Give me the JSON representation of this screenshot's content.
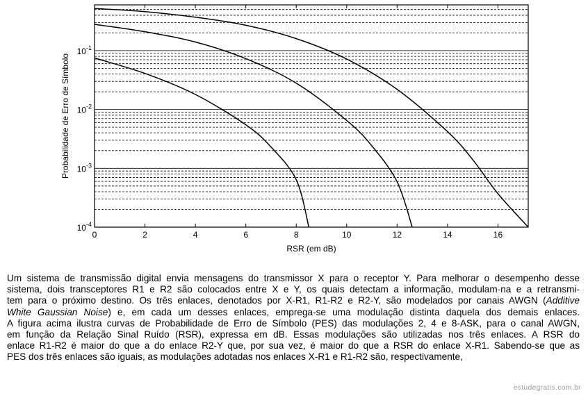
{
  "chart_data": {
    "type": "line",
    "xlabel": "RSR (em dB)",
    "ylabel": "Probabilidade de Erro de Símbolo",
    "y_scale": "log",
    "xlim": [
      0,
      17.2
    ],
    "ylim": [
      0.0001,
      0.6
    ],
    "x_ticks": [
      "0",
      "2",
      "4",
      "6",
      "8",
      "10",
      "12",
      "14",
      "16"
    ],
    "y_ticks": [
      {
        "base": "10",
        "exp": "-1",
        "value": 0.1
      },
      {
        "base": "10",
        "exp": "-2",
        "value": 0.01
      },
      {
        "base": "10",
        "exp": "-3",
        "value": 0.001
      },
      {
        "base": "10",
        "exp": "-4",
        "value": 0.0001
      }
    ],
    "grid": "horizontal",
    "series": [
      {
        "points": [
          [
            0,
            0.075
          ],
          [
            2,
            0.041
          ],
          [
            4,
            0.018
          ],
          [
            6,
            0.0055
          ],
          [
            7,
            0.0023
          ],
          [
            8,
            0.00064
          ],
          [
            8.5,
            0.0001
          ]
        ]
      },
      {
        "points": [
          [
            0,
            0.28
          ],
          [
            2,
            0.21
          ],
          [
            4,
            0.14
          ],
          [
            6,
            0.073
          ],
          [
            8,
            0.028
          ],
          [
            10,
            0.0065
          ],
          [
            11,
            0.0024
          ],
          [
            12,
            0.00059
          ],
          [
            12.6,
            0.0001
          ]
        ]
      },
      {
        "points": [
          [
            0,
            0.52
          ],
          [
            2,
            0.46
          ],
          [
            4,
            0.37
          ],
          [
            6,
            0.27
          ],
          [
            8,
            0.16
          ],
          [
            10,
            0.072
          ],
          [
            12,
            0.022
          ],
          [
            14,
            0.0042
          ],
          [
            15,
            0.0014
          ],
          [
            16,
            0.00037
          ],
          [
            17.2,
            0.0001
          ]
        ]
      }
    ]
  },
  "question": {
    "lines": [
      "Um sistema de transmissão digital envia mensagens do transmissor X para o receptor Y. Para melhorar o desempenho desse",
      "sistema, dois transceptores R1 e R2 são colocados entre X e Y, os quais detectam a informação, modulam-na e a retransmi-",
      "tem para o próximo destino. Os três enlaces, denotados por X-R1, R1-R2 e R2-Y, são modelados por canais AWGN (",
      "Additive",
      "White Gaussian Noise",
      ") e, em cada um desses enlaces, emprega-se uma modulação distinta daquela dos demais enlaces.",
      "A figura acima ilustra curvas de Probabilidade de Erro de Símbolo (PES) das modulações 2, 4 e 8-ASK, para o canal AWGN,",
      "em função da Relação Sinal Ruído (RSR), expressa em dB.  Essas modulações são utilizadas nos três enlaces. A RSR do",
      "enlace R1-R2 é maior do que a do enlace R2-Y que, por sua vez, é maior do que a RSR do enlace X-R1. Sabendo-se que as",
      "PES dos três enlaces são iguais,  as modulações adotadas nos enlaces X-R1 e R1-R2 são, respectivamente,"
    ]
  },
  "watermark": "estudegratis.com.br"
}
